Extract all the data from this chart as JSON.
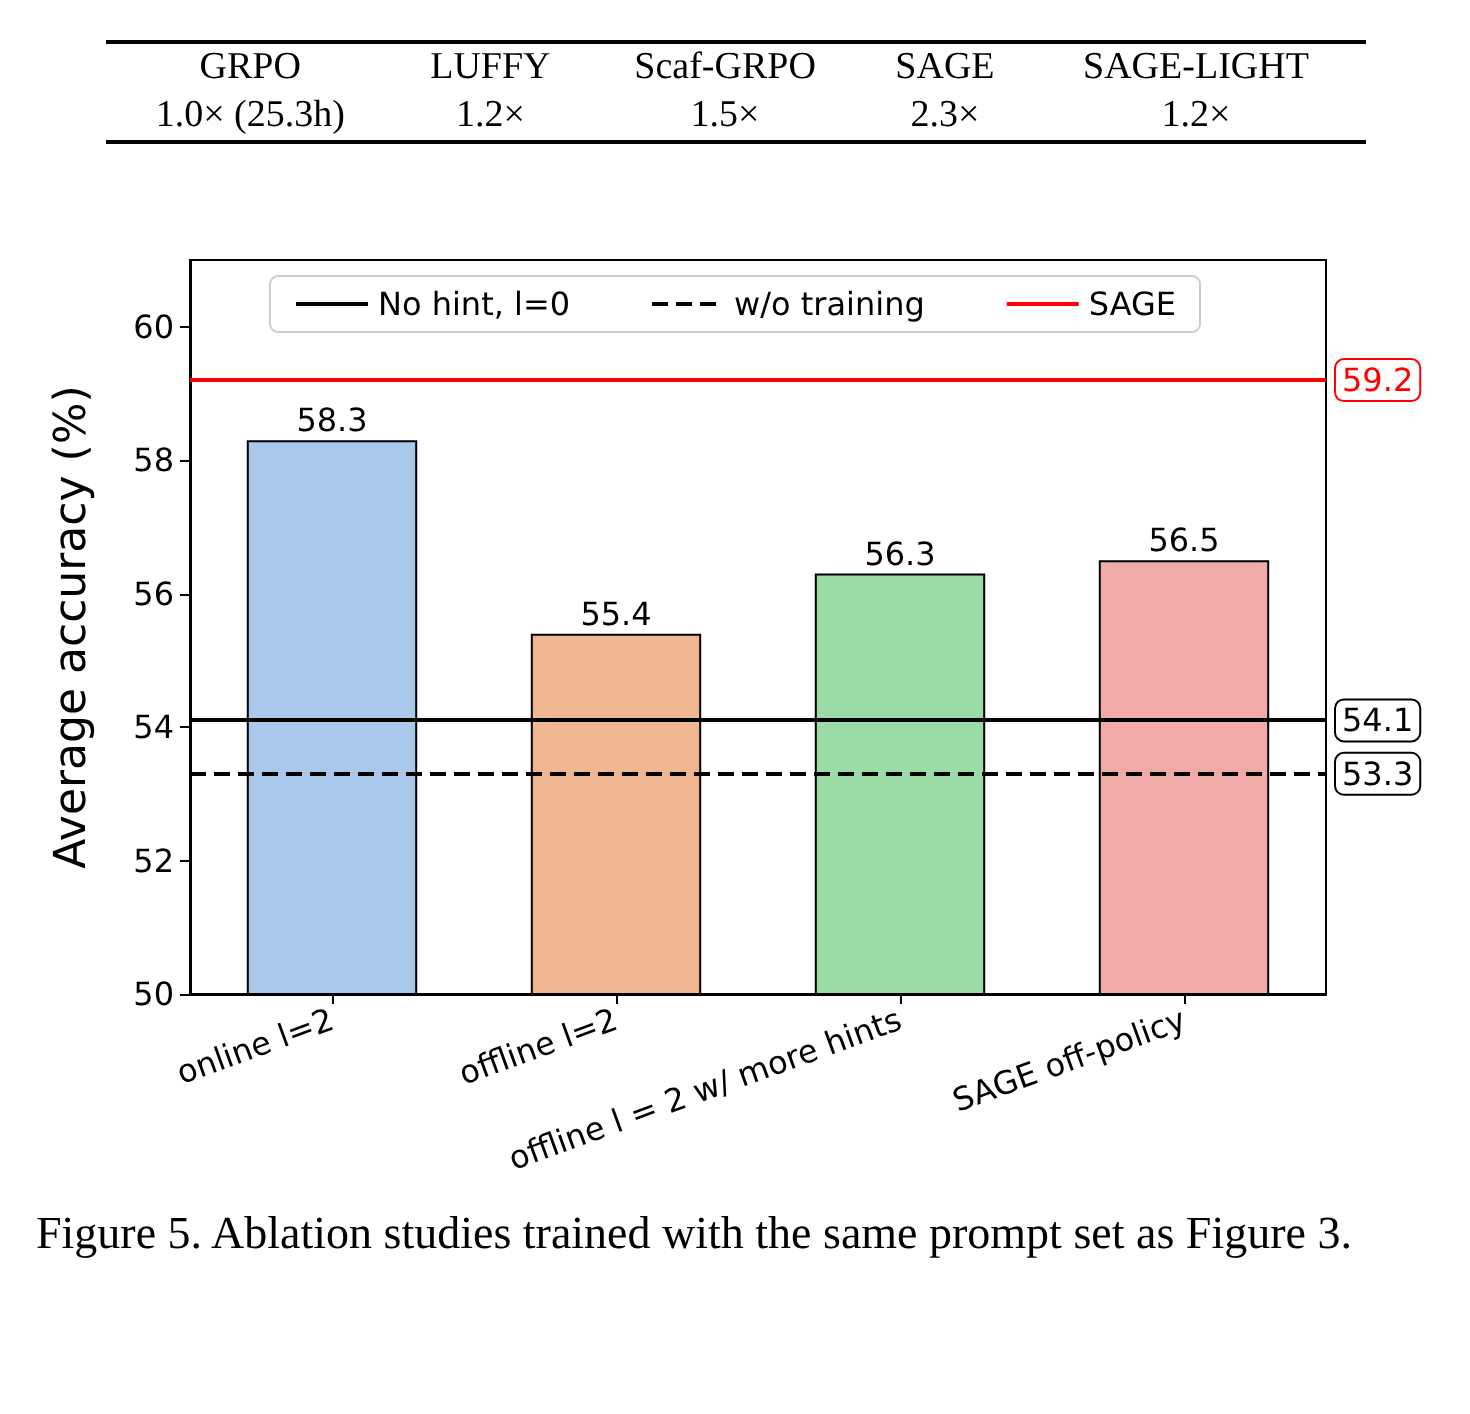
{
  "chart_data": {
    "type": "bar",
    "ylabel": "Average accuracy (%)",
    "categories": [
      "online l=2",
      "offline l=2",
      "offline l = 2 w/ more hints",
      "SAGE off-policy"
    ],
    "series": [
      {
        "values": [
          58.3,
          55.4,
          56.3,
          56.5
        ],
        "colors": [
          "#aac9ea",
          "#eeb691",
          "#9adba6",
          "#f0aba9"
        ]
      },
      {
        "type": "line",
        "name": "No hint, l=0",
        "color": "#000000",
        "line_style": "solid",
        "values": [
          null,
          null,
          null,
          null
        ]
      },
      {
        "type": "line",
        "name": "w/o training",
        "color": "#000000",
        "line_style": "dashed",
        "values": [
          null,
          null,
          null,
          null
        ]
      },
      {
        "type": "line",
        "name": "SAGE",
        "color": "#ff0000",
        "line_style": "solid",
        "values": [
          null,
          null,
          null,
          null
        ]
      }
    ],
    "ref_lines": [
      {
        "axis": "y",
        "value": 54.1,
        "label": "54.1",
        "color": "#000000",
        "line_style": "solid"
      },
      {
        "axis": "y",
        "value": 53.3,
        "label": "53.3",
        "color": "#000000",
        "line_style": "dashed"
      },
      {
        "axis": "y",
        "value": 59.2,
        "label": "59.2",
        "color": "#ff0000",
        "line_style": "solid"
      }
    ],
    "ylim": [
      50,
      61
    ],
    "yticks": [
      50,
      52,
      54,
      56,
      58,
      60
    ],
    "data_labels": true,
    "grid": false,
    "legend": "top",
    "annotations": [
      "GRPO",
      "LUFFY",
      "Scaf-GRPO",
      "SAGE",
      "SAGE-LIGHT",
      "1.0× (25.3h)",
      "1.2×",
      "1.5×",
      "2.3×",
      "1.2×",
      "Figure 5. Ablation studies trained with the same prompt set as Figure 3."
    ]
  }
}
